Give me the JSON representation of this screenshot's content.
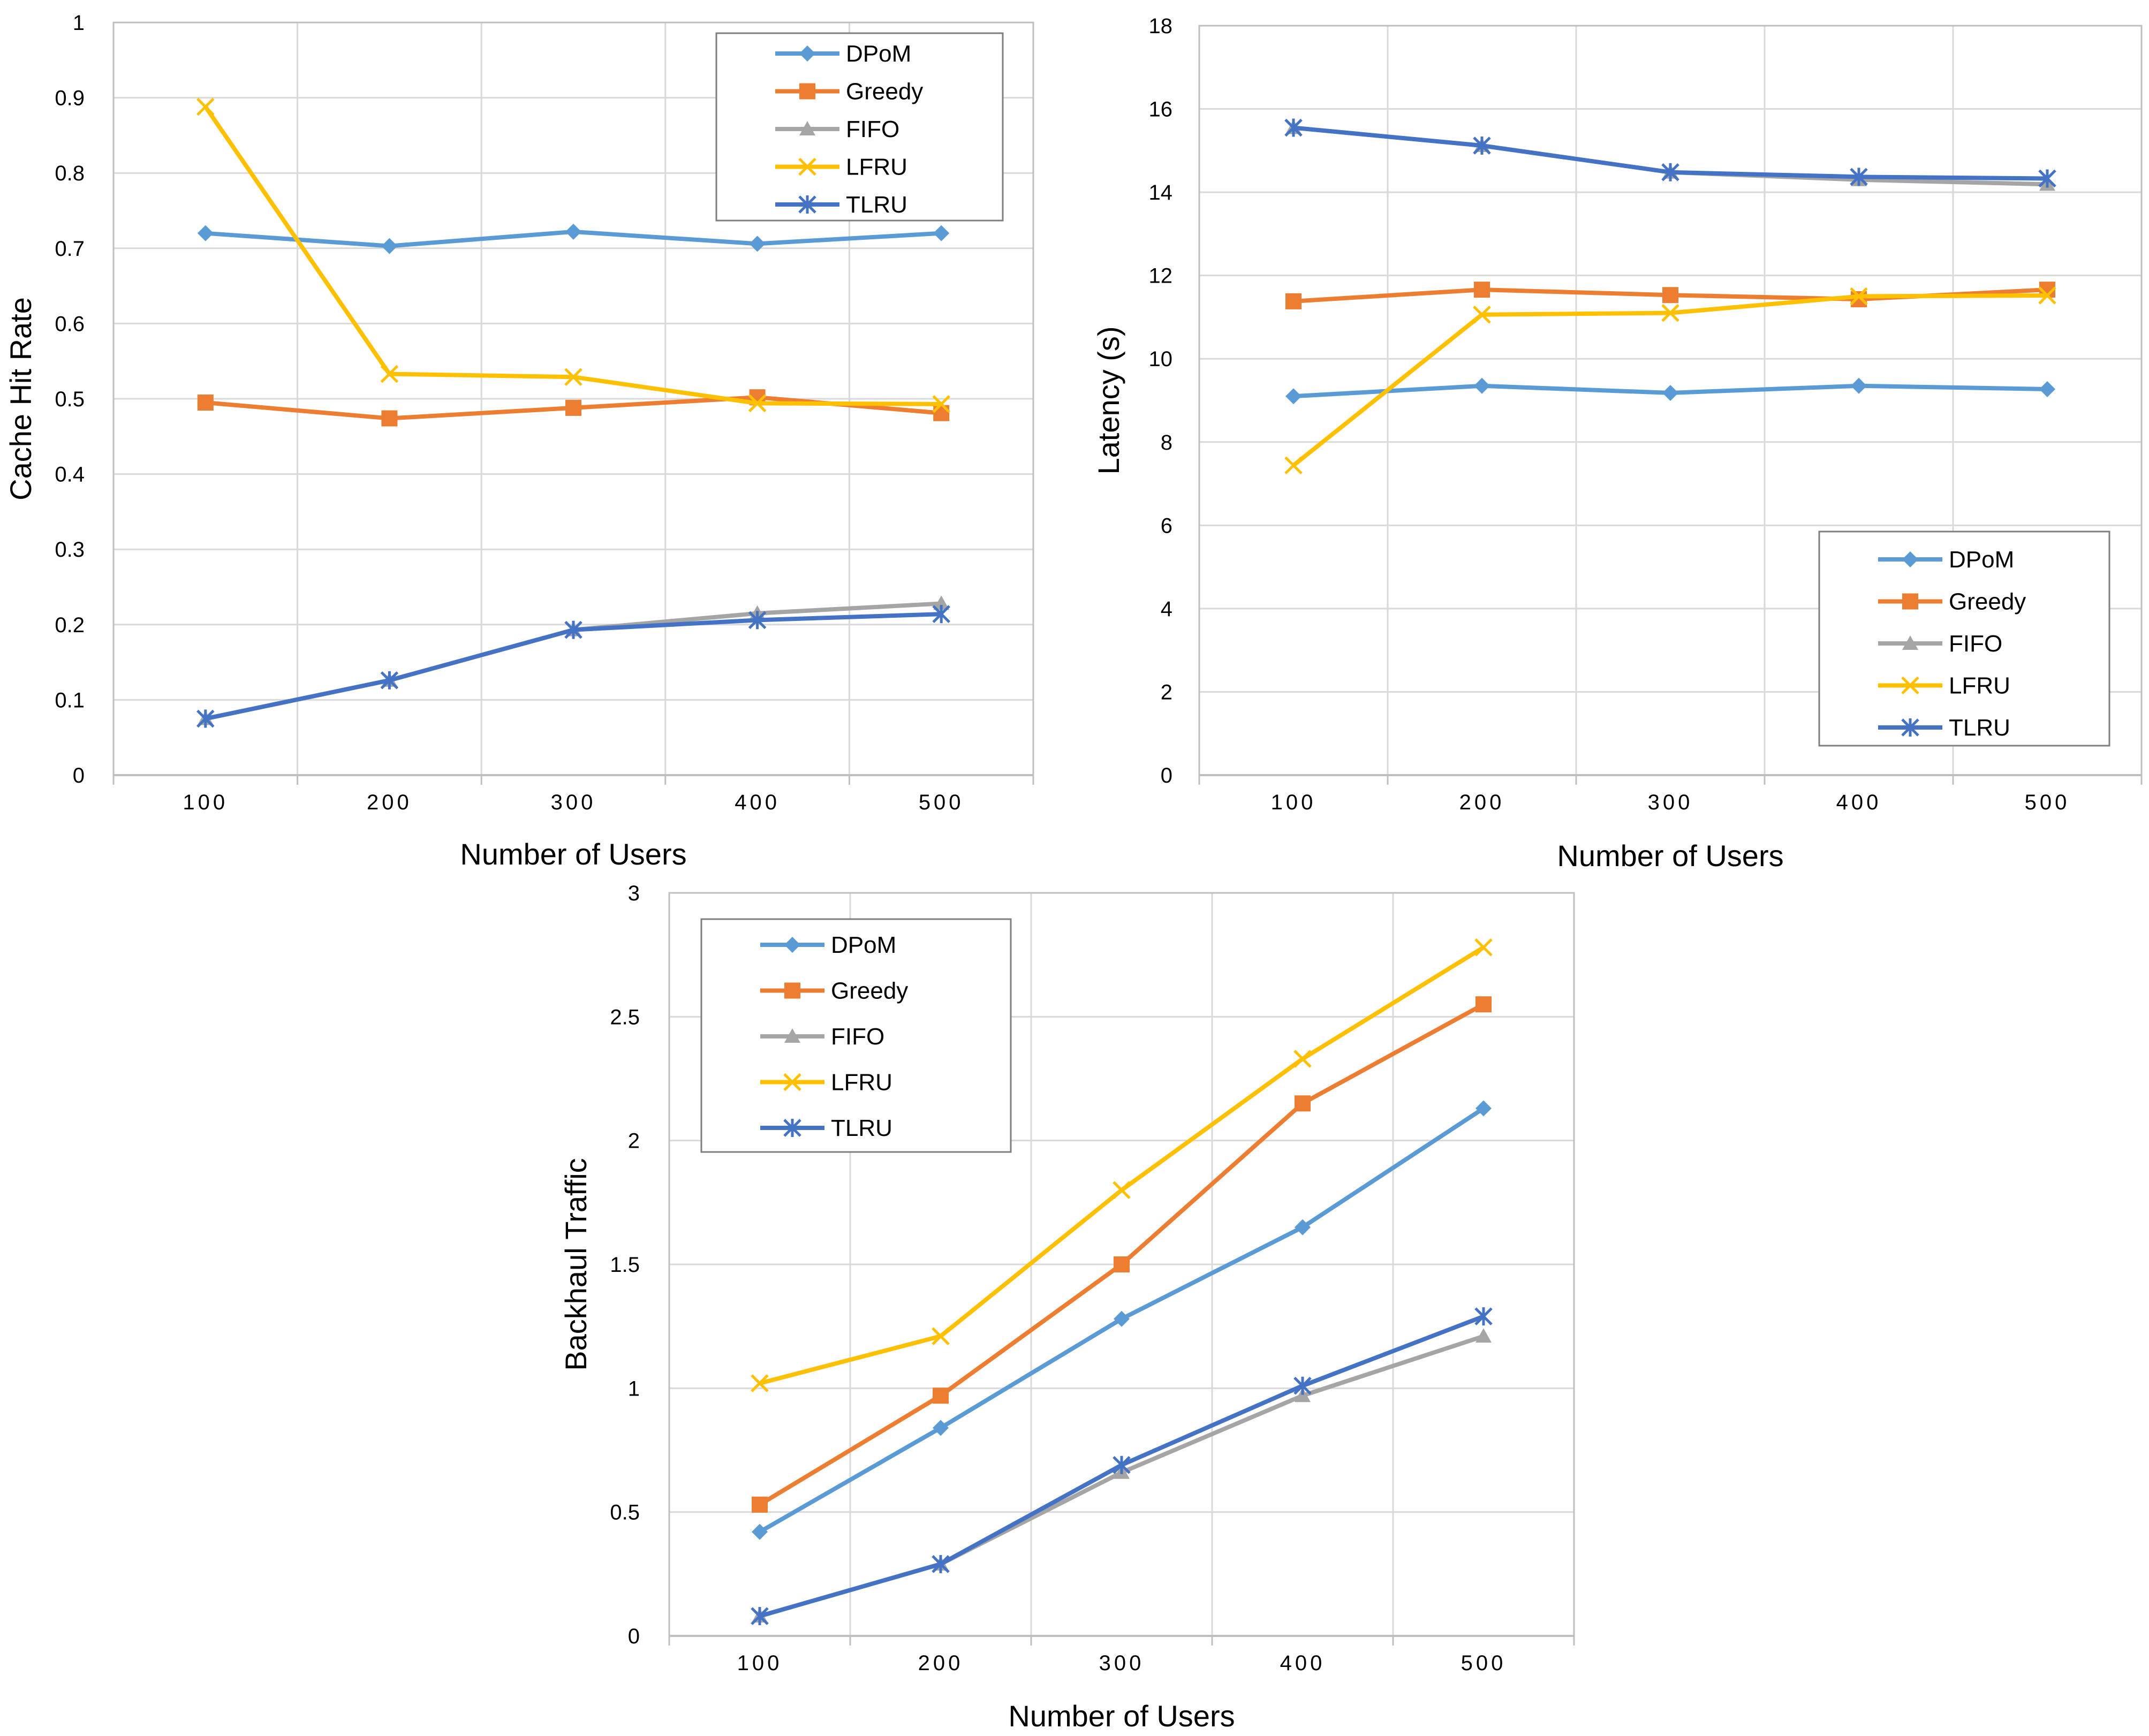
{
  "series_styles": [
    {
      "name": "DPoM",
      "color": "#5B9BD5",
      "marker": "diamond"
    },
    {
      "name": "Greedy",
      "color": "#ED7D31",
      "marker": "square"
    },
    {
      "name": "FIFO",
      "color": "#A5A5A5",
      "marker": "triangle"
    },
    {
      "name": "LFRU",
      "color": "#FFC000",
      "marker": "x"
    },
    {
      "name": "TLRU",
      "color": "#4472C4",
      "marker": "star"
    }
  ],
  "chart_data": [
    {
      "type": "line",
      "title": "",
      "xlabel": "Number of Users",
      "ylabel": "Cache Hit Rate",
      "categories": [
        "100",
        "200",
        "300",
        "400",
        "500"
      ],
      "ylim": [
        0,
        1
      ],
      "yticks": [
        "0",
        "0.1",
        "0.2",
        "0.3",
        "0.4",
        "0.5",
        "0.6",
        "0.7",
        "0.8",
        "0.9",
        "1"
      ],
      "grid": true,
      "legend_position": "top-right",
      "series": [
        {
          "name": "DPoM",
          "values": [
            0.72,
            0.703,
            0.722,
            0.706,
            0.72
          ]
        },
        {
          "name": "Greedy",
          "values": [
            0.495,
            0.474,
            0.488,
            0.502,
            0.481
          ]
        },
        {
          "name": "FIFO",
          "values": [
            0.075,
            0.126,
            0.193,
            0.215,
            0.228
          ]
        },
        {
          "name": "LFRU",
          "values": [
            0.888,
            0.533,
            0.529,
            0.494,
            0.493
          ]
        },
        {
          "name": "TLRU",
          "values": [
            0.075,
            0.126,
            0.193,
            0.206,
            0.214
          ]
        }
      ]
    },
    {
      "type": "line",
      "title": "",
      "xlabel": "Number of Users",
      "ylabel": "Latency (s)",
      "categories": [
        "100",
        "200",
        "300",
        "400",
        "500"
      ],
      "ylim": [
        0,
        18
      ],
      "yticks": [
        "0",
        "2",
        "4",
        "6",
        "8",
        "10",
        "12",
        "14",
        "16",
        "18"
      ],
      "grid": true,
      "legend_position": "bottom-right",
      "series": [
        {
          "name": "DPoM",
          "values": [
            9.1,
            9.35,
            9.18,
            9.35,
            9.27
          ]
        },
        {
          "name": "Greedy",
          "values": [
            11.38,
            11.66,
            11.53,
            11.43,
            11.66
          ]
        },
        {
          "name": "FIFO",
          "values": [
            15.55,
            15.12,
            14.48,
            14.3,
            14.19
          ]
        },
        {
          "name": "LFRU",
          "values": [
            7.44,
            11.06,
            11.1,
            11.5,
            11.52
          ]
        },
        {
          "name": "TLRU",
          "values": [
            15.55,
            15.12,
            14.48,
            14.37,
            14.33
          ]
        }
      ]
    },
    {
      "type": "line",
      "title": "",
      "xlabel": "Number of Users",
      "ylabel": "Backhaul Traffic",
      "categories": [
        "100",
        "200",
        "300",
        "400",
        "500"
      ],
      "ylim": [
        0,
        3
      ],
      "yticks": [
        "0",
        "0.5",
        "1",
        "1.5",
        "2",
        "2.5",
        "3"
      ],
      "grid": true,
      "legend_position": "top-left",
      "series": [
        {
          "name": "DPoM",
          "values": [
            0.42,
            0.84,
            1.28,
            1.65,
            2.13
          ]
        },
        {
          "name": "Greedy",
          "values": [
            0.53,
            0.97,
            1.5,
            2.15,
            2.55
          ]
        },
        {
          "name": "FIFO",
          "values": [
            0.08,
            0.29,
            0.66,
            0.97,
            1.21
          ]
        },
        {
          "name": "LFRU",
          "values": [
            1.02,
            1.21,
            1.8,
            2.33,
            2.78
          ]
        },
        {
          "name": "TLRU",
          "values": [
            0.08,
            0.29,
            0.69,
            1.01,
            1.29
          ]
        }
      ]
    }
  ]
}
